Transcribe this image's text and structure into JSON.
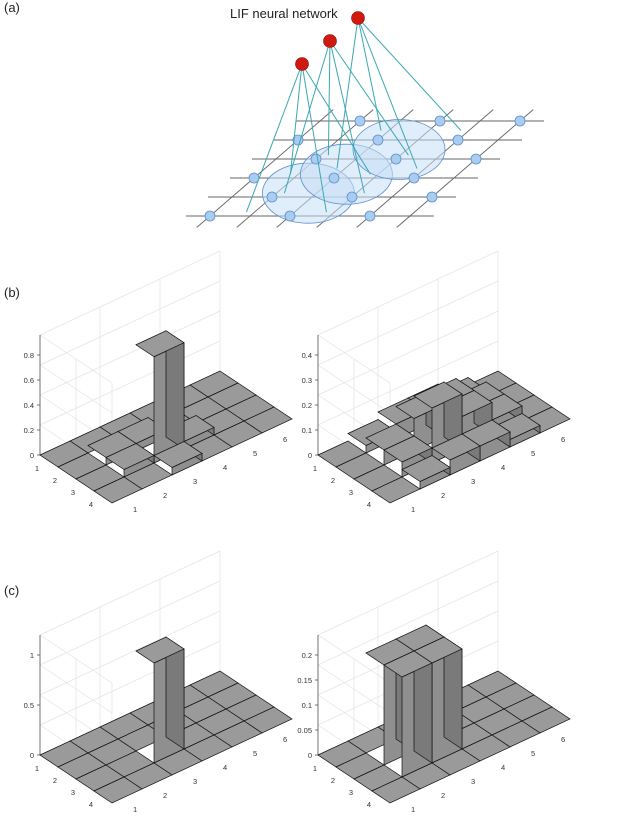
{
  "panel_labels": {
    "a": "(a)",
    "b": "(b)",
    "c": "(c)"
  },
  "diagram": {
    "title": "LIF neural network",
    "neuron_color": "#d01a0f",
    "input_node_color": "#a9cdf0",
    "connection_color": "#3aa8b4",
    "receptive_field_color": "#c6def5"
  },
  "chart_data": [
    {
      "panel": "b",
      "position": "left",
      "type": "bar3d",
      "rows": [
        1,
        2,
        3,
        4
      ],
      "cols": [
        1,
        2,
        3,
        4,
        5,
        6
      ],
      "zlim": [
        0,
        0.8
      ],
      "zticks": [
        "0",
        "0.2",
        "0.4",
        "0.6",
        "0.8"
      ],
      "values": [
        [
          0,
          0,
          0,
          0,
          0,
          0
        ],
        [
          0,
          0.06,
          0.06,
          0,
          0,
          0
        ],
        [
          0,
          0.06,
          0.85,
          0.06,
          0,
          0
        ],
        [
          0,
          0,
          0.06,
          0,
          0,
          0
        ]
      ]
    },
    {
      "panel": "b",
      "position": "right",
      "type": "bar3d",
      "rows": [
        1,
        2,
        3,
        4
      ],
      "cols": [
        1,
        2,
        3,
        4,
        5,
        6
      ],
      "zlim": [
        0,
        0.4
      ],
      "zticks": [
        "0",
        "0.1",
        "0.2",
        "0.3",
        "0.4"
      ],
      "values": [
        [
          0,
          0.03,
          0.06,
          0.06,
          0.03,
          0
        ],
        [
          0,
          0.06,
          0.13,
          0.13,
          0.06,
          0
        ],
        [
          0,
          0.06,
          0.22,
          0.13,
          0.06,
          0
        ],
        [
          0,
          0.03,
          0.06,
          0.06,
          0.03,
          0
        ]
      ]
    },
    {
      "panel": "c",
      "position": "left",
      "type": "bar3d",
      "rows": [
        1,
        2,
        3,
        4
      ],
      "cols": [
        1,
        2,
        3,
        4,
        5,
        6
      ],
      "zlim": [
        0,
        1
      ],
      "zticks": [
        "0",
        "0.5",
        "1"
      ],
      "values": [
        [
          0,
          0,
          0,
          0,
          0,
          0
        ],
        [
          0,
          0,
          0,
          0,
          0,
          0
        ],
        [
          0,
          0,
          1,
          0,
          0,
          0
        ],
        [
          0,
          0,
          0,
          0,
          0,
          0
        ]
      ]
    },
    {
      "panel": "c",
      "position": "right",
      "type": "bar3d",
      "rows": [
        1,
        2,
        3,
        4
      ],
      "cols": [
        1,
        2,
        3,
        4,
        5,
        6
      ],
      "zlim": [
        0,
        0.2
      ],
      "zticks": [
        "0",
        "0.05",
        "0.1",
        "0.15",
        "0.2"
      ],
      "values": [
        [
          0,
          0,
          0,
          0,
          0,
          0
        ],
        [
          0,
          0.2,
          0.2,
          0,
          0,
          0
        ],
        [
          0,
          0.2,
          0.2,
          0,
          0,
          0
        ],
        [
          0,
          0,
          0,
          0,
          0,
          0
        ]
      ]
    }
  ]
}
